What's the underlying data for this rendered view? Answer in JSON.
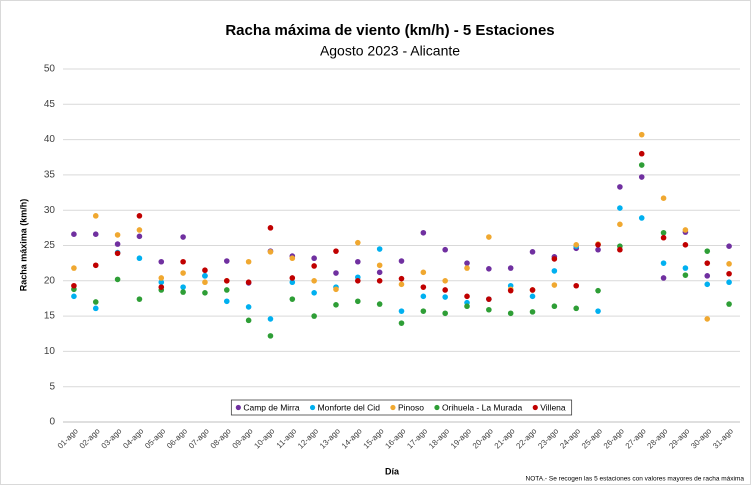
{
  "chart_data": {
    "type": "scatter",
    "title": "Racha máxima de viento (km/h) - 5 Estaciones",
    "subtitle": "Agosto 2023 - Alicante",
    "x_label": "Día",
    "y_label": "Racha máxima (km/h)",
    "note": "NOTA.- Se recogen las 5 estaciones con valores mayores de racha máxima",
    "categories": [
      "01-ago",
      "02-ago",
      "03-ago",
      "04-ago",
      "05-ago",
      "06-ago",
      "07-ago",
      "08-ago",
      "09-ago",
      "10-ago",
      "11-ago",
      "12-ago",
      "13-ago",
      "14-ago",
      "15-ago",
      "16-ago",
      "17-ago",
      "18-ago",
      "19-ago",
      "20-ago",
      "21-ago",
      "22-ago",
      "23-ago",
      "24-ago",
      "25-ago",
      "26-ago",
      "27-ago",
      "28-ago",
      "29-ago",
      "30-ago",
      "31-ago"
    ],
    "series": [
      {
        "name": "Camp de Mirra",
        "color": "#7030a0",
        "values": [
          26.6,
          26.6,
          25.2,
          26.3,
          22.7,
          26.2,
          20.7,
          22.8,
          19.7,
          24.2,
          23.5,
          23.2,
          21.1,
          22.7,
          21.2,
          22.8,
          26.8,
          24.4,
          22.5,
          21.7,
          21.8,
          24.1,
          23.4,
          24.6,
          24.4,
          33.3,
          34.7,
          20.4,
          26.9,
          20.7,
          24.9
        ]
      },
      {
        "name": "Monforte del Cid",
        "color": "#00b0f0",
        "values": [
          17.8,
          16.1,
          24.0,
          23.2,
          19.8,
          19.1,
          20.7,
          17.1,
          16.3,
          14.6,
          19.8,
          18.3,
          19.1,
          20.5,
          24.5,
          15.7,
          17.8,
          17.7,
          16.9,
          17.4,
          19.3,
          17.8,
          21.4,
          24.9,
          15.7,
          30.3,
          28.9,
          22.5,
          21.8,
          19.5,
          19.8
        ]
      },
      {
        "name": "Pinoso",
        "color": "#f0a830",
        "values": [
          21.8,
          29.2,
          26.5,
          27.2,
          20.4,
          21.1,
          19.8,
          20.0,
          22.7,
          24.1,
          23.2,
          20.0,
          18.8,
          25.4,
          22.2,
          19.5,
          21.2,
          20.0,
          21.8,
          26.2,
          18.8,
          18.7,
          19.4,
          25.1,
          25.2,
          28.0,
          40.7,
          31.7,
          27.2,
          14.6,
          22.4
        ]
      },
      {
        "name": "Orihuela - La Murada",
        "color": "#2e9e36",
        "values": [
          18.8,
          17.0,
          20.2,
          17.4,
          18.7,
          18.4,
          18.3,
          18.7,
          14.4,
          12.2,
          17.4,
          15.0,
          16.6,
          17.1,
          16.7,
          14.0,
          15.7,
          15.4,
          16.4,
          15.9,
          15.4,
          15.6,
          16.4,
          16.1,
          18.6,
          24.9,
          36.4,
          26.8,
          20.8,
          24.2,
          16.7
        ]
      },
      {
        "name": "Villena",
        "color": "#c00000",
        "values": [
          19.3,
          22.2,
          23.9,
          29.2,
          19.1,
          22.7,
          21.5,
          20.0,
          19.8,
          27.5,
          20.4,
          22.1,
          24.2,
          20.0,
          20.0,
          20.3,
          19.1,
          18.7,
          17.8,
          17.4,
          18.6,
          18.7,
          23.1,
          19.3,
          25.1,
          24.4,
          38.0,
          26.1,
          25.1,
          22.5,
          21.0
        ]
      }
    ],
    "ylim": [
      0,
      50
    ],
    "yticks": [
      0,
      5,
      10,
      15,
      20,
      25,
      30,
      35,
      40,
      45,
      50
    ],
    "grid": true
  }
}
